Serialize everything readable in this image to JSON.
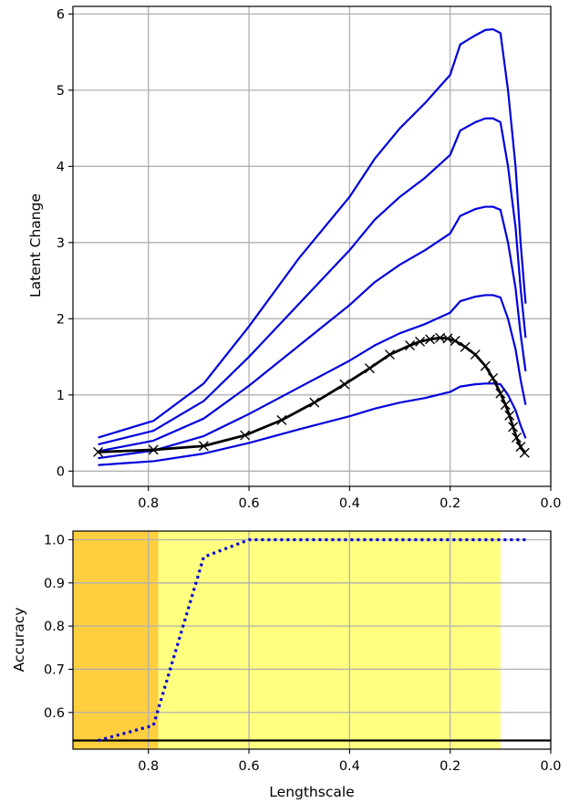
{
  "chart_data": [
    {
      "type": "line",
      "title": "",
      "xlabel": "",
      "ylabel": "Latent Change",
      "xlim": [
        0.95,
        0.0
      ],
      "ylim": [
        -0.2,
        6.1
      ],
      "x_inverted": true,
      "grid": true,
      "xticks": [
        0.8,
        0.6,
        0.4,
        0.2,
        0.0
      ],
      "xtick_labels": [
        "0.8",
        "0.6",
        "0.4",
        "0.2",
        "0.0"
      ],
      "yticks": [
        0,
        1,
        2,
        3,
        4,
        5,
        6
      ],
      "ytick_labels": [
        "0",
        "1",
        "2",
        "3",
        "4",
        "5",
        "6"
      ],
      "colors": {
        "blue": "#0000dd",
        "mean": "#000000",
        "grid": "#b0b0b0"
      },
      "series": [
        {
          "style": "blue-line",
          "x": [
            0.9,
            0.79,
            0.69,
            0.6,
            0.5,
            0.4,
            0.35,
            0.3,
            0.25,
            0.2,
            0.18,
            0.15,
            0.13,
            0.115,
            0.1,
            0.085,
            0.07,
            0.06,
            0.05
          ],
          "y": [
            0.44,
            0.66,
            1.15,
            1.9,
            2.8,
            3.6,
            4.1,
            4.5,
            4.83,
            5.2,
            5.6,
            5.72,
            5.79,
            5.8,
            5.75,
            5.0,
            4.0,
            3.0,
            2.2
          ]
        },
        {
          "style": "blue-line",
          "x": [
            0.9,
            0.79,
            0.69,
            0.6,
            0.5,
            0.4,
            0.35,
            0.3,
            0.25,
            0.2,
            0.18,
            0.15,
            0.13,
            0.115,
            0.1,
            0.085,
            0.07,
            0.06,
            0.05
          ],
          "y": [
            0.35,
            0.53,
            0.92,
            1.5,
            2.2,
            2.9,
            3.3,
            3.6,
            3.85,
            4.15,
            4.47,
            4.58,
            4.63,
            4.63,
            4.58,
            4.0,
            3.2,
            2.4,
            1.75
          ]
        },
        {
          "style": "blue-line",
          "x": [
            0.9,
            0.79,
            0.69,
            0.6,
            0.5,
            0.4,
            0.35,
            0.3,
            0.25,
            0.2,
            0.18,
            0.15,
            0.13,
            0.115,
            0.1,
            0.085,
            0.07,
            0.06,
            0.05
          ],
          "y": [
            0.26,
            0.4,
            0.69,
            1.12,
            1.65,
            2.18,
            2.48,
            2.71,
            2.9,
            3.12,
            3.35,
            3.44,
            3.47,
            3.47,
            3.43,
            3.0,
            2.4,
            1.8,
            1.31
          ]
        },
        {
          "style": "blue-line",
          "x": [
            0.9,
            0.79,
            0.69,
            0.6,
            0.5,
            0.4,
            0.35,
            0.3,
            0.25,
            0.2,
            0.18,
            0.15,
            0.13,
            0.115,
            0.1,
            0.085,
            0.07,
            0.06,
            0.05
          ],
          "y": [
            0.17,
            0.27,
            0.46,
            0.75,
            1.1,
            1.45,
            1.65,
            1.81,
            1.93,
            2.08,
            2.23,
            2.29,
            2.31,
            2.31,
            2.28,
            2.0,
            1.6,
            1.2,
            0.87
          ]
        },
        {
          "style": "blue-line",
          "x": [
            0.9,
            0.79,
            0.69,
            0.6,
            0.5,
            0.4,
            0.35,
            0.3,
            0.25,
            0.2,
            0.18,
            0.15,
            0.13,
            0.115,
            0.1,
            0.085,
            0.07,
            0.06,
            0.05
          ],
          "y": [
            0.08,
            0.13,
            0.23,
            0.37,
            0.55,
            0.72,
            0.82,
            0.9,
            0.96,
            1.04,
            1.11,
            1.14,
            1.15,
            1.15,
            1.14,
            1.0,
            0.8,
            0.6,
            0.43
          ]
        },
        {
          "style": "black-marked",
          "x": [
            0.9,
            0.79,
            0.69,
            0.608,
            0.535,
            0.47,
            0.41,
            0.36,
            0.32,
            0.28,
            0.26,
            0.24,
            0.22,
            0.205,
            0.19,
            0.17,
            0.15,
            0.13,
            0.115,
            0.1,
            0.09,
            0.082,
            0.075,
            0.068,
            0.06,
            0.052
          ],
          "y": [
            0.25,
            0.28,
            0.33,
            0.47,
            0.67,
            0.9,
            1.14,
            1.35,
            1.53,
            1.65,
            1.7,
            1.73,
            1.75,
            1.74,
            1.71,
            1.63,
            1.53,
            1.38,
            1.22,
            1.02,
            0.87,
            0.73,
            0.58,
            0.44,
            0.32,
            0.24
          ]
        }
      ]
    },
    {
      "type": "line",
      "title": "",
      "xlabel": "Lengthscale",
      "ylabel": "Accuracy",
      "xlim": [
        0.95,
        0.0
      ],
      "ylim": [
        0.515,
        1.02
      ],
      "x_inverted": true,
      "grid": true,
      "xticks": [
        0.8,
        0.6,
        0.4,
        0.2,
        0.0
      ],
      "xtick_labels": [
        "0.8",
        "0.6",
        "0.4",
        "0.2",
        "0.0"
      ],
      "yticks": [
        0.6,
        0.7,
        0.8,
        0.9,
        1.0
      ],
      "ytick_labels": [
        "0.6",
        "0.7",
        "0.8",
        "0.9",
        "1.0"
      ],
      "colors": {
        "dotted": "#0000dd",
        "baseline": "#000000",
        "orange": "#ffcf3f",
        "yellow": "#ffff80",
        "grid": "#b0b0b0"
      },
      "shaded_regions": [
        {
          "x_from": 0.95,
          "x_to": 0.78,
          "color": "#ffcf3f"
        },
        {
          "x_from": 0.78,
          "x_to": 0.1,
          "color": "#ffff80"
        }
      ],
      "baseline": 0.535,
      "series": [
        {
          "style": "dotted",
          "x": [
            0.9,
            0.79,
            0.69,
            0.6,
            0.5,
            0.4,
            0.3,
            0.2,
            0.1,
            0.05
          ],
          "y": [
            0.535,
            0.57,
            0.96,
            1.0,
            1.0,
            1.0,
            1.0,
            1.0,
            1.0,
            1.0
          ]
        }
      ]
    }
  ]
}
